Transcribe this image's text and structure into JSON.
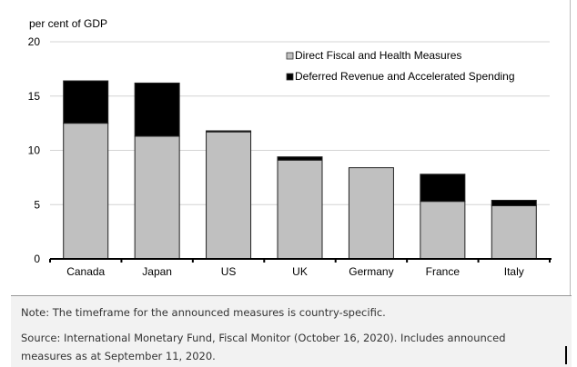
{
  "chart_data": {
    "type": "bar",
    "stacked": true,
    "ylabel": "per cent of GDP",
    "ylim": [
      0,
      20
    ],
    "yticks": [
      "0",
      "5",
      "10",
      "15",
      "20"
    ],
    "grid": true,
    "legend_position": "top-right",
    "categories": [
      "Canada",
      "Japan",
      "US",
      "UK",
      "Germany",
      "France",
      "Italy"
    ],
    "series": [
      {
        "name": "Direct Fiscal and Health Measures",
        "color": "#c0c0c0",
        "values": [
          12.5,
          11.3,
          11.7,
          9.1,
          8.4,
          5.3,
          4.9
        ]
      },
      {
        "name": "Deferred Revenue and Accelerated Spending",
        "color": "#000000",
        "values": [
          3.9,
          4.9,
          0.1,
          0.3,
          0.0,
          2.5,
          0.5
        ]
      }
    ]
  },
  "notes": {
    "note": "Note: The timeframe for the announced measures is country-specific.",
    "source": "Source: International Monetary Fund, Fiscal Monitor (October 16, 2020). Includes announced measures as at September 11, 2020."
  }
}
